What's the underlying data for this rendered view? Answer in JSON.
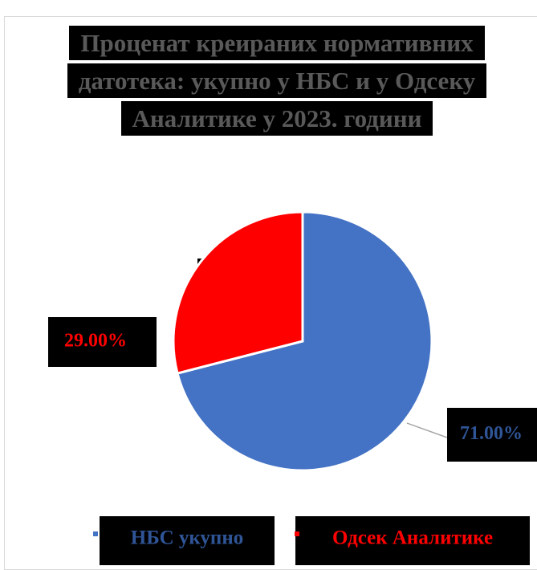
{
  "chart_data": {
    "type": "pie",
    "title": "Проценат креираних нормативних датотека: укупно у НБС и у Одсеку Аналитике у 2023. години",
    "categories": [
      "НБС укупно",
      "Одсек Аналитике"
    ],
    "values": [
      71,
      29
    ],
    "value_labels": [
      "71.00%",
      "29.00%"
    ],
    "colors": [
      "#4472c4",
      "#ff0000"
    ],
    "legend": "bottom"
  }
}
